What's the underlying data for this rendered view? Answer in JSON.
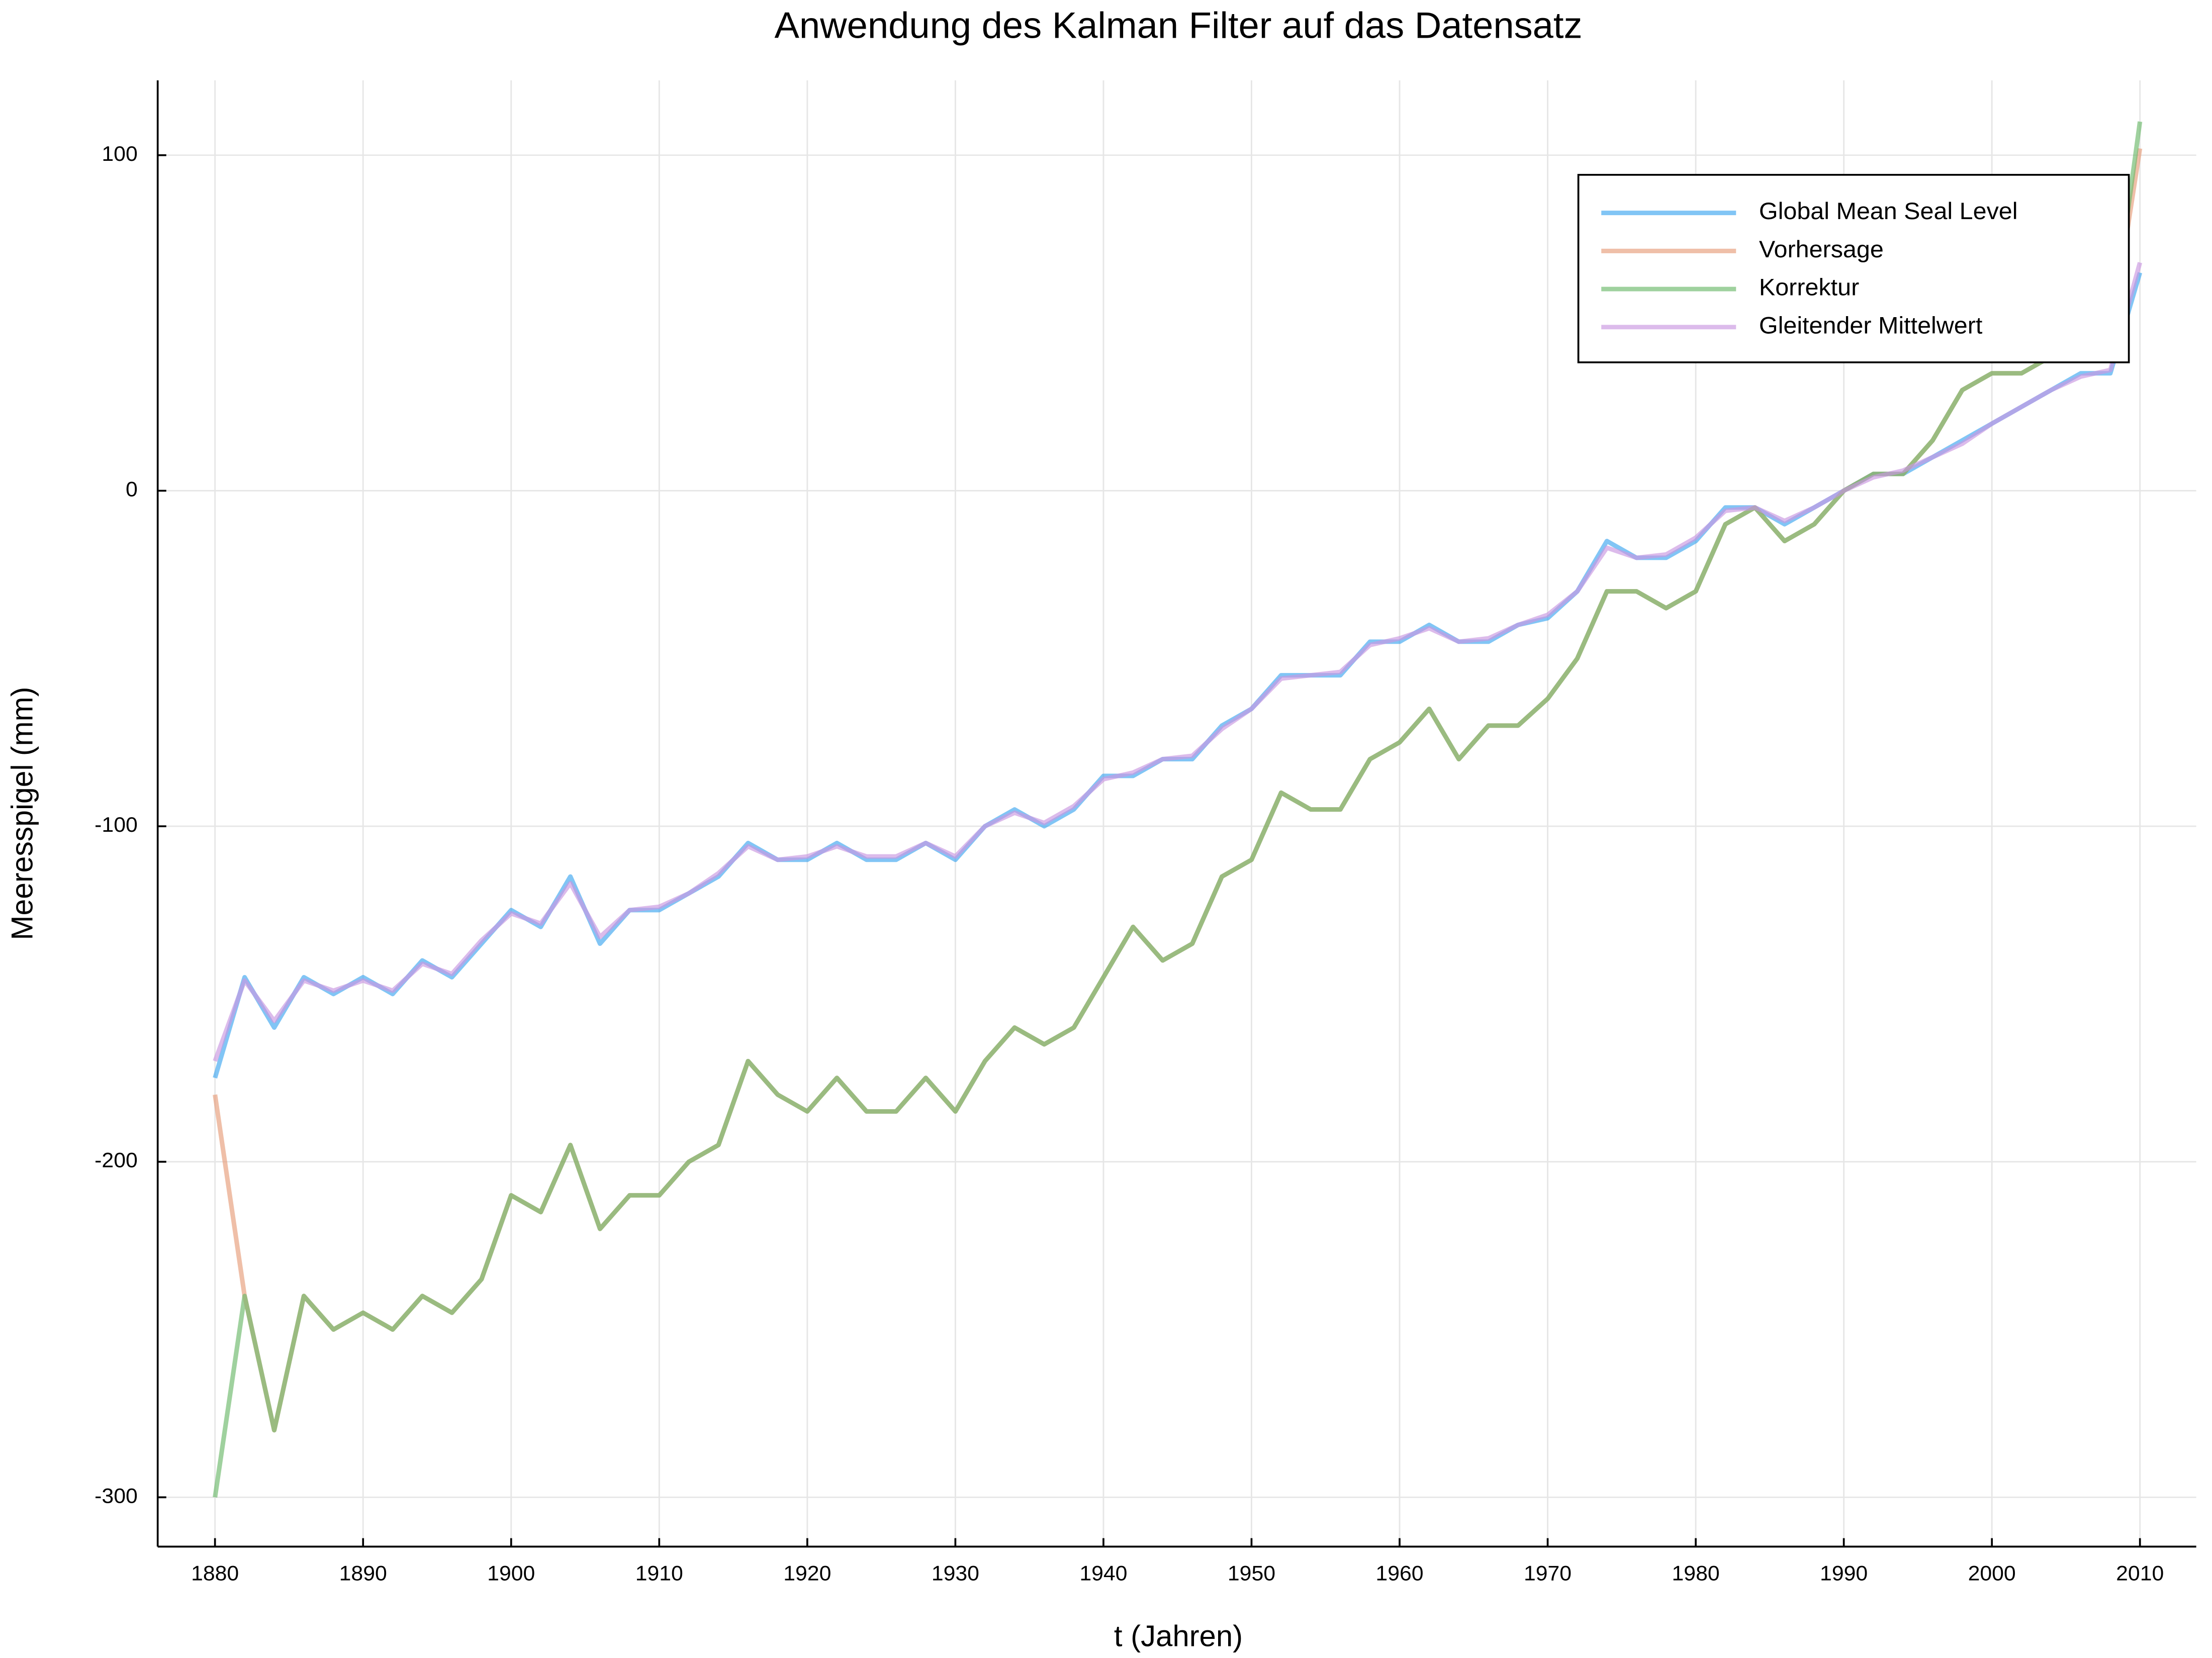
{
  "chart_data": {
    "type": "line",
    "title": "Anwendung des Kalman Filter auf das Datensatz",
    "xlabel": "t (Jahren)",
    "ylabel": "Meeresspigel (mm)",
    "x": [
      1880,
      1882,
      1884,
      1886,
      1888,
      1890,
      1892,
      1894,
      1896,
      1898,
      1900,
      1902,
      1904,
      1906,
      1908,
      1910,
      1912,
      1914,
      1916,
      1918,
      1920,
      1922,
      1924,
      1926,
      1928,
      1930,
      1932,
      1934,
      1936,
      1938,
      1940,
      1942,
      1944,
      1946,
      1948,
      1950,
      1952,
      1954,
      1956,
      1958,
      1960,
      1962,
      1964,
      1966,
      1968,
      1970,
      1972,
      1974,
      1976,
      1978,
      1980,
      1982,
      1984,
      1986,
      1988,
      1990,
      1992,
      1994,
      1996,
      1998,
      2000,
      2002,
      2004,
      2006,
      2008,
      2010
    ],
    "series": [
      {
        "name": "Global Mean Seal Level",
        "color": "#3da6f0",
        "values": [
          -175,
          -145,
          -160,
          -145,
          -150,
          -145,
          -150,
          -140,
          -145,
          -135,
          -125,
          -130,
          -115,
          -135,
          -125,
          -125,
          -120,
          -115,
          -105,
          -110,
          -110,
          -105,
          -110,
          -110,
          -105,
          -110,
          -100,
          -95,
          -100,
          -95,
          -85,
          -85,
          -80,
          -80,
          -70,
          -65,
          -55,
          -55,
          -55,
          -45,
          -45,
          -40,
          -45,
          -45,
          -40,
          -38,
          -30,
          -15,
          -20,
          -20,
          -15,
          -5,
          -5,
          -10,
          -5,
          0,
          5,
          5,
          10,
          15,
          20,
          25,
          30,
          35,
          35,
          65
        ]
      },
      {
        "name": "Vorhersage",
        "color": "#e79c7a",
        "values": [
          -180,
          -240,
          -280,
          -240,
          -250,
          -245,
          -250,
          -240,
          -245,
          -235,
          -210,
          -215,
          -195,
          -220,
          -210,
          -210,
          -200,
          -195,
          -170,
          -180,
          -185,
          -175,
          -185,
          -185,
          -175,
          -185,
          -170,
          -160,
          -165,
          -160,
          -145,
          -130,
          -140,
          -135,
          -115,
          -110,
          -90,
          -95,
          -95,
          -80,
          -75,
          -65,
          -80,
          -70,
          -70,
          -62,
          -50,
          -30,
          -30,
          -35,
          -30,
          -10,
          -5,
          -15,
          -10,
          0,
          5,
          5,
          15,
          30,
          35,
          35,
          40,
          45,
          45,
          102
        ]
      },
      {
        "name": "Korrektur",
        "color": "#6cb86a",
        "values": [
          -300,
          -240,
          -280,
          -240,
          -250,
          -245,
          -250,
          -240,
          -245,
          -235,
          -210,
          -215,
          -195,
          -220,
          -210,
          -210,
          -200,
          -195,
          -170,
          -180,
          -185,
          -175,
          -185,
          -185,
          -175,
          -185,
          -170,
          -160,
          -165,
          -160,
          -145,
          -130,
          -140,
          -135,
          -115,
          -110,
          -90,
          -95,
          -95,
          -80,
          -75,
          -65,
          -80,
          -70,
          -70,
          -62,
          -50,
          -30,
          -30,
          -35,
          -30,
          -10,
          -5,
          -15,
          -10,
          0,
          5,
          5,
          15,
          30,
          35,
          35,
          40,
          45,
          45,
          110
        ]
      },
      {
        "name": "Gleitender Mittelwert",
        "color": "#c997e0",
        "values": [
          -170,
          -146,
          -158,
          -146,
          -149,
          -146,
          -149,
          -141,
          -144,
          -134,
          -126,
          -129,
          -117,
          -133,
          -125,
          -124,
          -120,
          -114,
          -106,
          -110,
          -109,
          -106,
          -109,
          -109,
          -105,
          -109,
          -100,
          -96,
          -99,
          -94,
          -86,
          -84,
          -80,
          -79,
          -71,
          -65,
          -56,
          -55,
          -54,
          -46,
          -44,
          -41,
          -45,
          -44,
          -40,
          -37,
          -30,
          -17,
          -20,
          -19,
          -14,
          -6,
          -5,
          -9,
          -5,
          0,
          4,
          6,
          10,
          14,
          20,
          25,
          30,
          34,
          36,
          68
        ]
      }
    ],
    "xlim": [
      1876.13,
      2013.8
    ],
    "ylim": [
      -314.7,
      122.3
    ],
    "xticks": [
      1880,
      1890,
      1900,
      1910,
      1920,
      1930,
      1940,
      1950,
      1960,
      1970,
      1980,
      1990,
      2000,
      2010
    ],
    "yticks": [
      -300,
      -200,
      -100,
      0,
      100
    ],
    "grid": true,
    "legend": "top-right"
  }
}
